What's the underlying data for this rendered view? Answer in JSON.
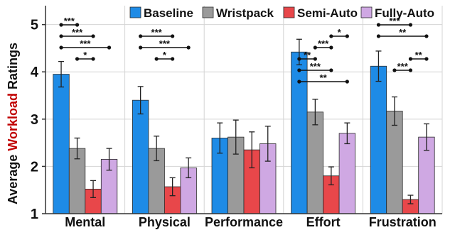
{
  "chart_data": {
    "type": "bar",
    "ylabel_parts": [
      "Average ",
      "Workload",
      " Ratings"
    ],
    "ylabel_colors": [
      "#111111",
      "#c00000",
      "#111111"
    ],
    "ylim": [
      1,
      5.4
    ],
    "yticks": [
      "1",
      "2",
      "3",
      "4",
      "5"
    ],
    "ytick_values": [
      1,
      2,
      3,
      4,
      5
    ],
    "grid": true,
    "legend_position": "top-right",
    "categories": [
      "Mental",
      "Physical",
      "Performance",
      "Effort",
      "Frustration"
    ],
    "series": [
      {
        "name": "Baseline",
        "color": "#1e8be6",
        "values": [
          3.95,
          3.4,
          2.6,
          4.42,
          4.12
        ],
        "err": [
          0.27,
          0.29,
          0.32,
          0.27,
          0.32
        ]
      },
      {
        "name": "Wristpack",
        "color": "#9a9a9a",
        "values": [
          2.38,
          2.38,
          2.62,
          3.15,
          3.17
        ],
        "err": [
          0.22,
          0.26,
          0.36,
          0.27,
          0.3
        ]
      },
      {
        "name": "Semi-Auto",
        "color": "#e8474a",
        "values": [
          1.52,
          1.57,
          2.35,
          1.8,
          1.3
        ],
        "err": [
          0.18,
          0.19,
          0.38,
          0.19,
          0.09
        ]
      },
      {
        "name": "Fully-Auto",
        "color": "#cfa8e3",
        "values": [
          2.15,
          1.97,
          2.48,
          2.7,
          2.62
        ],
        "err": [
          0.23,
          0.21,
          0.37,
          0.22,
          0.28
        ]
      }
    ],
    "annotations": [
      {
        "category": 0,
        "from": 0,
        "to": 1,
        "level": 0,
        "label": "***"
      },
      {
        "category": 0,
        "from": 0,
        "to": 2,
        "level": 1,
        "label": "***"
      },
      {
        "category": 0,
        "from": 0,
        "to": 3,
        "level": 2,
        "label": "***"
      },
      {
        "category": 0,
        "from": 1,
        "to": 2,
        "level": 3,
        "label": "*"
      },
      {
        "category": 1,
        "from": 0,
        "to": 2,
        "level": 1,
        "label": "***"
      },
      {
        "category": 1,
        "from": 0,
        "to": 3,
        "level": 2,
        "label": "***"
      },
      {
        "category": 1,
        "from": 1,
        "to": 2,
        "level": 3,
        "label": "*"
      },
      {
        "category": 3,
        "from": 2,
        "to": 3,
        "level": 1,
        "label": "*"
      },
      {
        "category": 3,
        "from": 1,
        "to": 2,
        "level": 2,
        "label": "***"
      },
      {
        "category": 3,
        "from": 0,
        "to": 1,
        "level": 3,
        "label": "**"
      },
      {
        "category": 3,
        "from": 0,
        "to": 2,
        "level": 4,
        "label": "***"
      },
      {
        "category": 3,
        "from": 0,
        "to": 3,
        "level": 5,
        "label": "**"
      },
      {
        "category": 4,
        "from": 0,
        "to": 2,
        "level": 0,
        "label": "***"
      },
      {
        "category": 4,
        "from": 0,
        "to": 3,
        "level": 1,
        "label": "**"
      },
      {
        "category": 4,
        "from": 2,
        "to": 3,
        "level": 3,
        "label": "**"
      },
      {
        "category": 4,
        "from": 1,
        "to": 2,
        "level": 4,
        "label": "***"
      }
    ]
  }
}
